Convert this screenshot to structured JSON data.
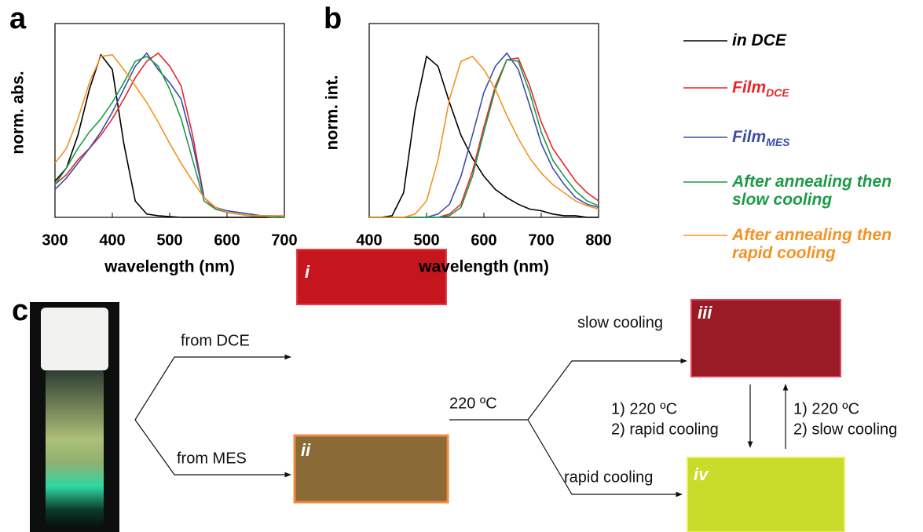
{
  "chart_data": [
    {
      "type": "line",
      "panel": "a",
      "xlabel": "wavelength (nm)",
      "ylabel": "norm. abs.",
      "x": [
        300,
        320,
        340,
        360,
        380,
        400,
        420,
        440,
        460,
        480,
        500,
        520,
        540,
        560,
        580,
        600,
        620,
        640,
        660,
        680,
        700
      ],
      "xlim": [
        300,
        700
      ],
      "xticks": [
        300,
        400,
        500,
        600,
        700
      ],
      "ylim": [
        0,
        1.18
      ],
      "series": [
        {
          "name": "in DCE",
          "color": "#000000",
          "values": [
            0.22,
            0.3,
            0.5,
            0.78,
            0.99,
            0.9,
            0.45,
            0.1,
            0.02,
            0.01,
            0.005,
            0,
            0,
            0,
            0,
            0,
            0,
            0,
            0,
            0,
            0
          ]
        },
        {
          "name": "Film",
          "subscript": "DCE",
          "color": "#e8262a",
          "values": [
            0.2,
            0.26,
            0.35,
            0.42,
            0.5,
            0.6,
            0.72,
            0.85,
            0.95,
            1.0,
            0.92,
            0.8,
            0.5,
            0.12,
            0.05,
            0.03,
            0.02,
            0.01,
            0.01,
            0,
            0
          ]
        },
        {
          "name": "Film",
          "subscript": "MES",
          "color": "#3a4fa8",
          "values": [
            0.17,
            0.24,
            0.33,
            0.42,
            0.52,
            0.64,
            0.78,
            0.92,
            1.0,
            0.9,
            0.82,
            0.72,
            0.45,
            0.12,
            0.06,
            0.04,
            0.03,
            0.02,
            0.01,
            0.01,
            0
          ]
        },
        {
          "name": "After annealing then slow cooling",
          "color": "#1e9a48",
          "values": [
            0.2,
            0.3,
            0.42,
            0.52,
            0.6,
            0.7,
            0.82,
            0.95,
            0.98,
            0.92,
            0.78,
            0.6,
            0.35,
            0.1,
            0.05,
            0.03,
            0.02,
            0.01,
            0.01,
            0,
            0
          ]
        },
        {
          "name": "After annealing then rapid cooling",
          "color": "#f39325",
          "values": [
            0.33,
            0.42,
            0.6,
            0.82,
            0.98,
            0.99,
            0.9,
            0.8,
            0.7,
            0.58,
            0.45,
            0.33,
            0.22,
            0.12,
            0.06,
            0.03,
            0.02,
            0.01,
            0.01,
            0.01,
            0.01
          ]
        }
      ]
    },
    {
      "type": "line",
      "panel": "b",
      "xlabel": "wavelength (nm)",
      "ylabel": "norm. int.",
      "x": [
        400,
        420,
        440,
        460,
        480,
        500,
        520,
        540,
        560,
        580,
        600,
        620,
        640,
        660,
        680,
        700,
        720,
        740,
        760,
        780,
        800
      ],
      "xlim": [
        400,
        800
      ],
      "xticks": [
        400,
        500,
        600,
        700,
        800
      ],
      "ylim": [
        0,
        1.18
      ],
      "series": [
        {
          "color": "#000000",
          "values": [
            0,
            0,
            0.01,
            0.15,
            0.65,
            0.98,
            0.92,
            0.7,
            0.5,
            0.36,
            0.25,
            0.17,
            0.12,
            0.08,
            0.05,
            0.04,
            0.02,
            0.01,
            0.01,
            0,
            0
          ]
        },
        {
          "color": "#e8262a",
          "values": [
            0,
            0,
            0,
            0,
            0,
            0,
            0,
            0.02,
            0.08,
            0.28,
            0.55,
            0.8,
            0.96,
            0.97,
            0.8,
            0.58,
            0.42,
            0.32,
            0.22,
            0.15,
            0.1
          ]
        },
        {
          "color": "#3a4fa8",
          "values": [
            0,
            0,
            0,
            0,
            0,
            0,
            0.02,
            0.08,
            0.25,
            0.5,
            0.76,
            0.92,
            1.0,
            0.9,
            0.68,
            0.45,
            0.3,
            0.2,
            0.12,
            0.08,
            0.06
          ]
        },
        {
          "color": "#1e9a48",
          "values": [
            0,
            0,
            0,
            0,
            0,
            0,
            0,
            0.01,
            0.06,
            0.25,
            0.52,
            0.78,
            0.96,
            0.95,
            0.76,
            0.52,
            0.35,
            0.25,
            0.16,
            0.1,
            0.07
          ]
        },
        {
          "color": "#f39325",
          "values": [
            0,
            0,
            0,
            0,
            0.02,
            0.1,
            0.35,
            0.72,
            0.95,
            0.98,
            0.9,
            0.78,
            0.62,
            0.48,
            0.36,
            0.27,
            0.2,
            0.15,
            0.1,
            0.07,
            0.05
          ]
        }
      ]
    }
  ],
  "diagram": {
    "panel": "c",
    "from_dce": "from DCE",
    "from_mes": "from MES",
    "anneal": "220 ºC",
    "slow": "slow cooling",
    "rapid": "rapid cooling",
    "down_step1": "1) 220 ºC",
    "down_step2": "2) rapid cooling",
    "up_step1": "1) 220 ºC",
    "up_step2": "2) slow cooling",
    "films": [
      "i",
      "ii",
      "iii",
      "iv"
    ]
  }
}
